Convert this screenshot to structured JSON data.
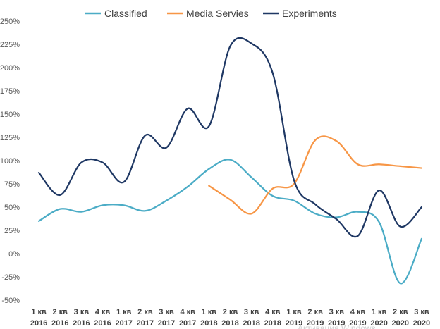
{
  "chart_data": {
    "type": "line",
    "title": "",
    "xlabel": "",
    "ylabel": "",
    "ylim": [
      -0.5,
      2.5
    ],
    "y_tick_step": 0.25,
    "y_tick_format": "percent",
    "grid": false,
    "legend_position": "top",
    "categories": [
      [
        "1 кв",
        "2016"
      ],
      [
        "2 кв",
        "2016"
      ],
      [
        "3 кв",
        "2016"
      ],
      [
        "4 кв",
        "2016"
      ],
      [
        "1 кв",
        "2017"
      ],
      [
        "2 кв",
        "2017"
      ],
      [
        "3 кв",
        "2017"
      ],
      [
        "4 кв",
        "2017"
      ],
      [
        "1 кв",
        "2018"
      ],
      [
        "2 кв",
        "2018"
      ],
      [
        "3 кв",
        "2018"
      ],
      [
        "4 кв",
        "2018"
      ],
      [
        "1 кв",
        "2019"
      ],
      [
        "2 кв",
        "2019"
      ],
      [
        "3 кв",
        "2019"
      ],
      [
        "4 кв",
        "2019"
      ],
      [
        "1 кв",
        "2020"
      ],
      [
        "2 кв",
        "2020"
      ],
      [
        "3 кв",
        "2020"
      ]
    ],
    "series": [
      {
        "name": "Classified",
        "color": "#4bacc6",
        "values": [
          0.35,
          0.48,
          0.45,
          0.52,
          0.52,
          0.46,
          0.57,
          0.72,
          0.91,
          1.01,
          0.82,
          0.62,
          0.57,
          0.43,
          0.39,
          0.45,
          0.34,
          -0.32,
          0.16
        ]
      },
      {
        "name": "Media Servies",
        "color": "#f79646",
        "values": [
          null,
          null,
          null,
          null,
          null,
          null,
          null,
          null,
          0.73,
          0.58,
          0.43,
          0.7,
          0.75,
          1.22,
          1.21,
          0.96,
          0.96,
          0.94,
          0.92
        ]
      },
      {
        "name": "Experiments",
        "color": "#1f3864",
        "values": [
          0.87,
          0.63,
          0.98,
          0.98,
          0.77,
          1.27,
          1.14,
          1.56,
          1.37,
          2.23,
          2.26,
          1.94,
          0.79,
          0.53,
          0.37,
          0.19,
          0.68,
          0.29,
          0.5
        ]
      }
    ]
  },
  "watermark": "Активация Windows"
}
